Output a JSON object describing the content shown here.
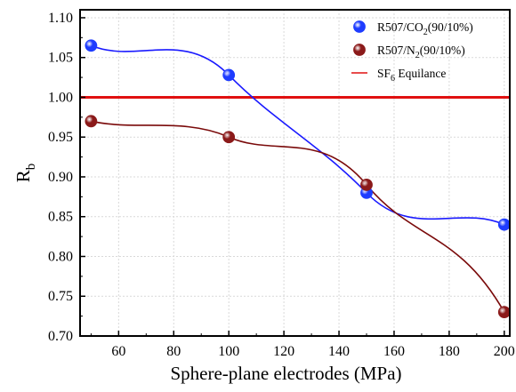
{
  "chart_data": {
    "type": "scatter",
    "xlabel": "Sphere-plane electrodes (MPa)",
    "ylabel": "R_b",
    "ylabel_main": "R",
    "ylabel_sub": "b",
    "xlim": [
      46,
      202
    ],
    "ylim": [
      0.7,
      1.11
    ],
    "x_ticks": [
      60,
      80,
      100,
      120,
      140,
      160,
      180,
      200
    ],
    "x_tick_labels": [
      "60",
      "80",
      "100",
      "120",
      "140",
      "160",
      "180",
      "200"
    ],
    "y_ticks": [
      0.7,
      0.75,
      0.8,
      0.85,
      0.9,
      0.95,
      1.0,
      1.05,
      1.1
    ],
    "y_tick_labels": [
      "0.70",
      "0.75",
      "0.80",
      "0.85",
      "0.90",
      "0.95",
      "1.00",
      "1.05",
      "1.10"
    ],
    "grid": true,
    "legend_position": "top-right",
    "series": [
      {
        "name": "R507/CO2(90/10%)",
        "legend_pre": "R507/CO",
        "legend_sub": "2",
        "legend_post": "(90/10%)",
        "color": "#1a1aff",
        "marker_color": "#1e3cff",
        "x": [
          50,
          100,
          150,
          200
        ],
        "y": [
          1.065,
          1.028,
          0.88,
          0.84
        ],
        "fit": "spline"
      },
      {
        "name": "R507/N2(90/10%)",
        "legend_pre": "R507/N",
        "legend_sub": "2",
        "legend_post": "(90/10%)",
        "color": "#7a0a0a",
        "marker_color": "#8b1a1a",
        "x": [
          50,
          100,
          150,
          200
        ],
        "y": [
          0.97,
          0.95,
          0.89,
          0.73
        ],
        "fit": "spline"
      }
    ],
    "reference_line": {
      "name": "SF6 Equilance",
      "legend_pre": "SF",
      "legend_sub": "6",
      "legend_post": " Equilance",
      "y": 1.0,
      "color": "#e01010"
    }
  }
}
